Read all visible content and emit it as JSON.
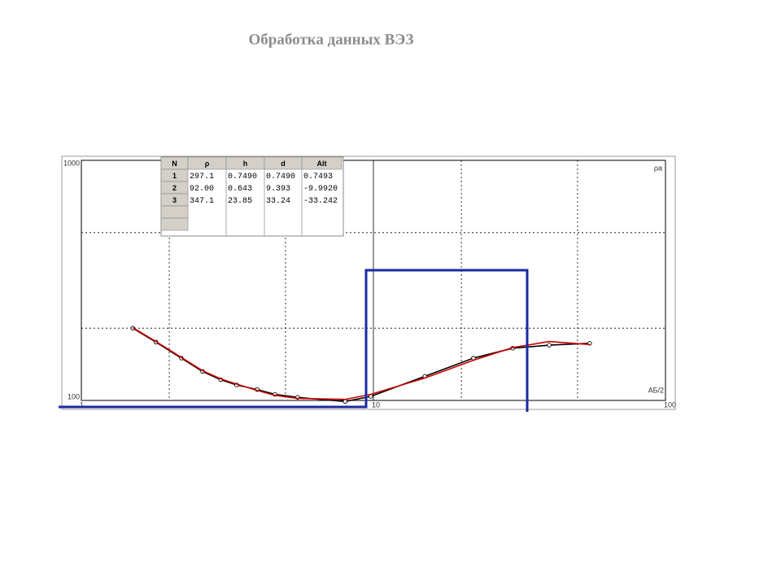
{
  "title": "Обработка данных ВЭЗ",
  "chart_data": {
    "type": "line",
    "y_label": "ρа",
    "x_label": "АБ/2",
    "x": [
      1.5,
      1.8,
      2.2,
      2.6,
      3.0,
      3.4,
      4.0,
      4.6,
      5.5,
      8.0,
      9.8,
      15,
      22,
      30,
      40,
      55
    ],
    "series": [
      {
        "color": "#000000",
        "markers": true,
        "values": [
          200,
          175,
          150,
          132,
          122,
          116,
          111,
          106,
          103,
          99,
          104,
          126,
          150,
          165,
          170,
          173
        ]
      },
      {
        "color": "#cc0000",
        "markers": false,
        "values": [
          201,
          176,
          151,
          133,
          123,
          117,
          110,
          105,
          102,
          101,
          106,
          124,
          147,
          166,
          176,
          171
        ]
      }
    ],
    "xlim": [
      1,
      100
    ],
    "ylim": [
      100,
      1000
    ],
    "log_x": true,
    "log_y": true,
    "xticks": [
      1,
      10,
      100
    ],
    "yticks": [
      100,
      1000
    ],
    "xgrid": [
      2,
      5,
      20,
      50
    ],
    "ygrid": [
      200,
      500
    ],
    "grid": true
  },
  "table": {
    "header": [
      "N",
      "ρ",
      "h",
      "d",
      "Alt"
    ],
    "rows": [
      [
        "1",
        "297.1",
        "0.7490",
        "0.7490",
        "0.7493"
      ],
      [
        "2",
        "92.00",
        "0.643",
        "9.393",
        "-9.9920"
      ],
      [
        "3",
        "347.1",
        "23.85",
        "33.24",
        "-33.242"
      ]
    ]
  }
}
